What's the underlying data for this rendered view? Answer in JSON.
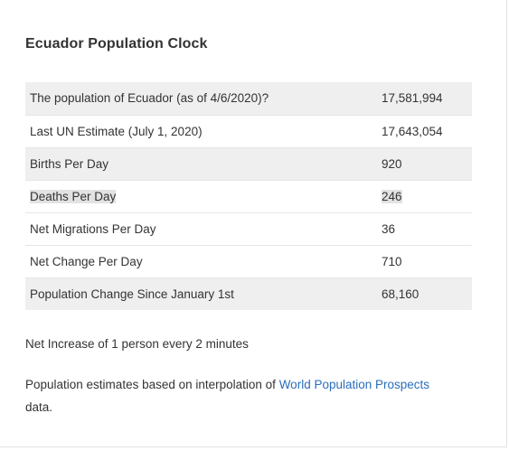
{
  "card": {
    "title": "Ecuador Population Clock"
  },
  "table": {
    "rows": [
      {
        "label": "The population of Ecuador (as of 4/6/2020)?",
        "value": "17,581,994"
      },
      {
        "label": "Last UN Estimate (July 1, 2020)",
        "value": "17,643,054"
      },
      {
        "label": "Births Per Day",
        "value": "920"
      },
      {
        "label": "Deaths Per Day",
        "value": "246"
      },
      {
        "label": "Net Migrations Per Day",
        "value": "36"
      },
      {
        "label": "Net Change Per Day",
        "value": "710"
      },
      {
        "label": "Population Change Since January 1st",
        "value": "68,160"
      }
    ]
  },
  "note": "Net Increase of 1 person every 2 minutes",
  "source": {
    "prefix": "Population estimates based on interpolation of ",
    "link_text": "World Population Prospects",
    "suffix": "data."
  },
  "colors": {
    "link": "#2a6ebb",
    "shaded_row": "#efefef",
    "highlight": "#e2e2e2"
  }
}
